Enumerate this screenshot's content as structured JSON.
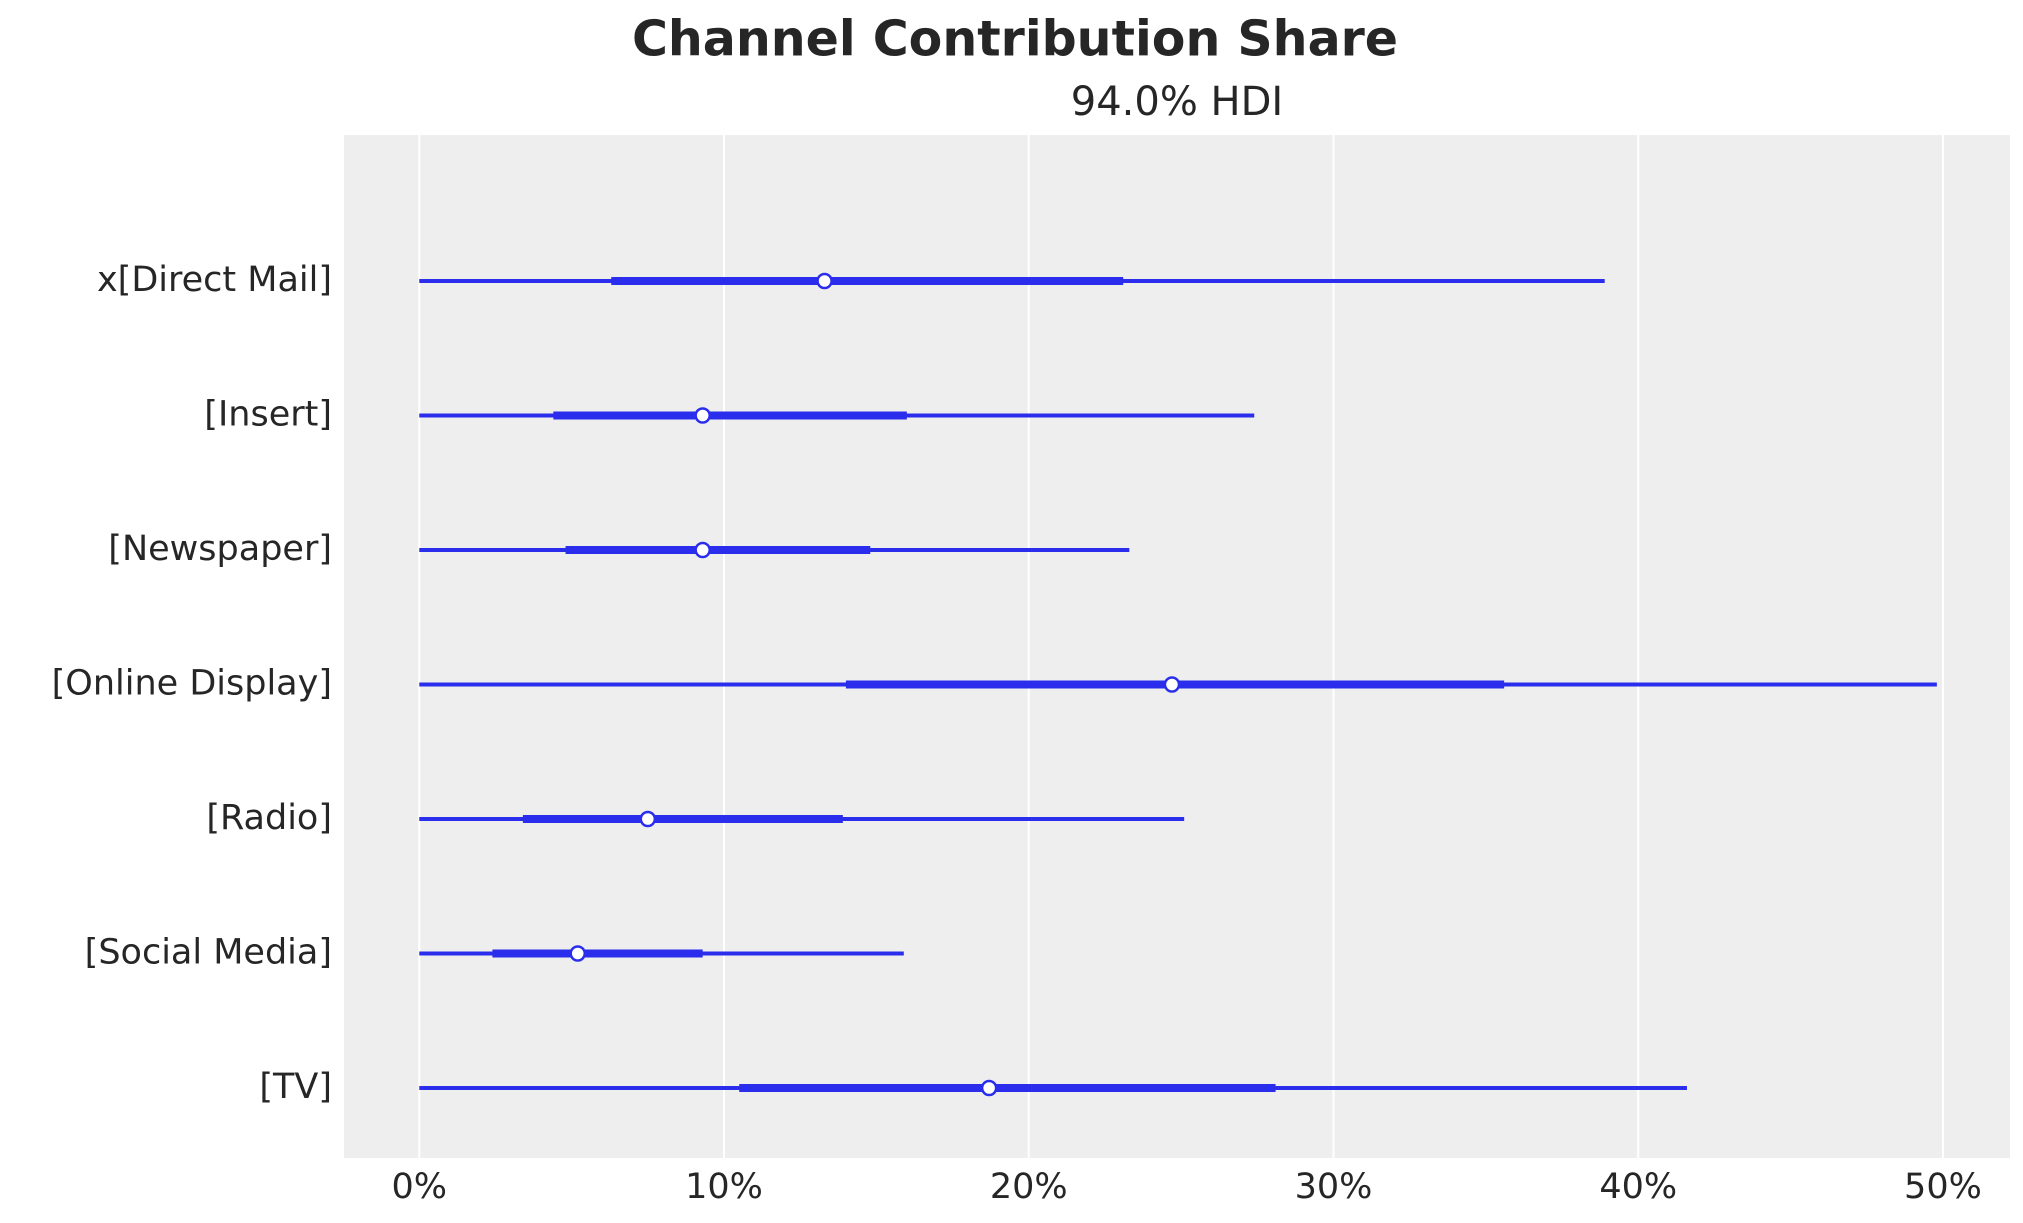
{
  "chart_data": {
    "type": "forest",
    "title": "Channel Contribution Share",
    "subtitle": "94.0% HDI",
    "categories": [
      "x[Direct Mail]",
      "[Insert]",
      "[Newspaper]",
      "[Online Display]",
      "[Radio]",
      "[Social Media]",
      "[TV]"
    ],
    "hdi_low": [
      0,
      0,
      0,
      0,
      0,
      0,
      0
    ],
    "iqr_low": [
      6.3,
      4.4,
      4.8,
      14.0,
      3.4,
      2.4,
      10.5
    ],
    "median": [
      13.3,
      9.3,
      9.3,
      24.7,
      7.5,
      5.2,
      18.7
    ],
    "iqr_high": [
      23.1,
      16.0,
      14.8,
      35.6,
      13.9,
      9.3,
      28.1
    ],
    "hdi_high": [
      38.9,
      27.4,
      23.3,
      49.8,
      25.1,
      15.9,
      41.6
    ],
    "color": "#2a2eec",
    "xlim": [
      -2.47,
      52.2
    ],
    "xticks": [
      {
        "value": 0,
        "label": "0%"
      },
      {
        "value": 10,
        "label": "10%"
      },
      {
        "value": 20,
        "label": "20%"
      },
      {
        "value": 30,
        "label": "30%"
      },
      {
        "value": 40,
        "label": "40%"
      },
      {
        "value": 50,
        "label": "50%"
      }
    ],
    "grid": true
  }
}
